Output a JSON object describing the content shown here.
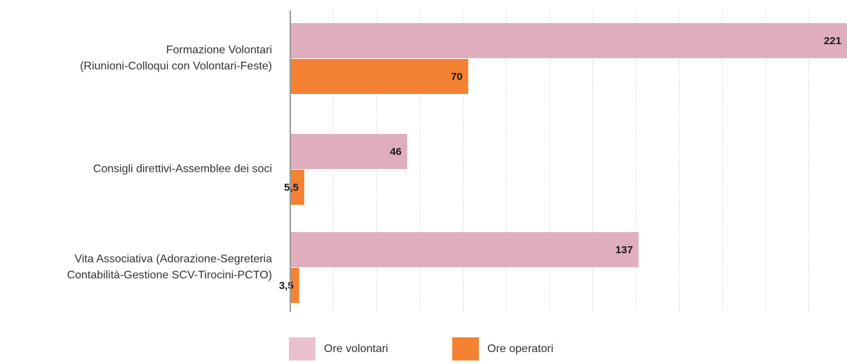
{
  "chart_data": {
    "type": "barh",
    "categories": [
      [
        "Formazione Volontari",
        "(Riunioni-Colloqui con Volontari-Feste)"
      ],
      [
        "Consigli direttivi-Assemblee dei soci"
      ],
      [
        "Vita Associativa (Adorazione-Segreteria",
        "Contabilità-Gestione SCV-Tirocini-PCTO)"
      ]
    ],
    "series": [
      {
        "name": "Ore volontari",
        "color": "#e0adbd",
        "values": [
          221,
          46,
          137
        ]
      },
      {
        "name": "Ore operatori",
        "color": "#f58232",
        "values": [
          70,
          5.5,
          3.5
        ],
        "value_labels": [
          "70",
          "5,5",
          "3,5"
        ]
      }
    ],
    "xlim": [
      0,
      219
    ],
    "xticks": [
      0,
      17,
      34,
      51,
      68,
      85,
      102,
      119,
      136,
      153,
      170,
      187,
      204
    ],
    "grid": true,
    "legend": "bottom"
  }
}
